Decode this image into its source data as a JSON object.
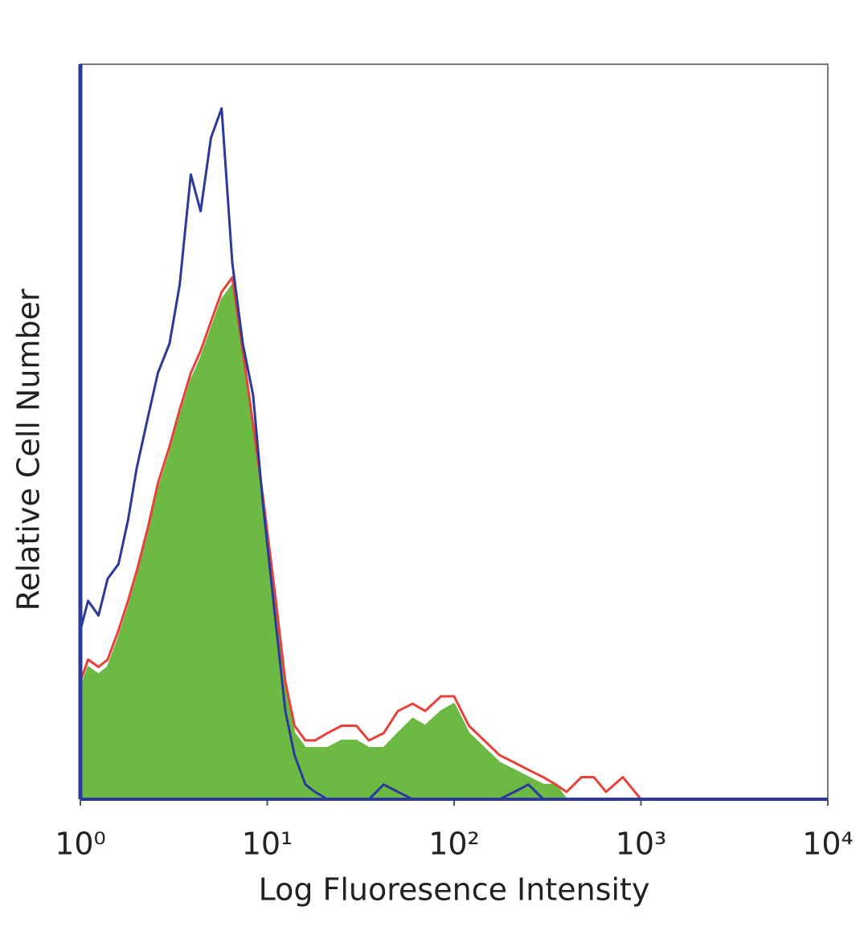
{
  "chart_data": {
    "type": "histogram-overlay",
    "x_label": "Log Fluoresence Intensity",
    "y_label": "Relative Cell Number",
    "xscale": "log",
    "xlim": [
      1,
      10000
    ],
    "ylim": [
      0,
      100
    ],
    "xticks": [
      {
        "value": 1,
        "label": "10⁰"
      },
      {
        "value": 10,
        "label": "10¹"
      },
      {
        "value": 100,
        "label": "10²"
      },
      {
        "value": 1000,
        "label": "10³"
      },
      {
        "value": 10000,
        "label": "10⁴"
      }
    ],
    "x": [
      1,
      1.1,
      1.25,
      1.4,
      1.6,
      1.8,
      2,
      2.3,
      2.6,
      3,
      3.4,
      3.9,
      4.4,
      5,
      5.7,
      6.5,
      7.4,
      8.4,
      9.5,
      11,
      12.5,
      14,
      16,
      18,
      21,
      25,
      30,
      35,
      42,
      50,
      60,
      70,
      85,
      100,
      120,
      145,
      175,
      210,
      250,
      300,
      350,
      400,
      480,
      560,
      650,
      800,
      1000,
      10000
    ],
    "series": [
      {
        "color": "#6cb943",
        "filled": true,
        "values": [
          15,
          18,
          17,
          18,
          22,
          26,
          30,
          36,
          42,
          47,
          52,
          57,
          60,
          64,
          68,
          70,
          60,
          50,
          40,
          27,
          15,
          9,
          7,
          7,
          7,
          8,
          8,
          7,
          7,
          9,
          11,
          10,
          12,
          13,
          9,
          7,
          5,
          4,
          3,
          2,
          2,
          0,
          0,
          0,
          0,
          0,
          0,
          0
        ]
      },
      {
        "color": "#e8413a",
        "filled": false,
        "values": [
          16,
          19,
          18,
          19,
          23,
          27,
          31,
          37,
          43,
          48,
          53,
          58,
          61,
          65,
          69,
          71,
          61,
          51,
          41,
          28,
          16,
          10,
          8,
          8,
          9,
          10,
          10,
          8,
          9,
          12,
          13,
          12,
          14,
          14,
          10,
          8,
          6,
          5,
          4,
          3,
          2,
          1,
          3,
          3,
          1,
          3,
          0,
          0
        ]
      },
      {
        "color": "#2b3a9a",
        "filled": false,
        "values": [
          23,
          27,
          25,
          30,
          32,
          38,
          45,
          52,
          58,
          62,
          70,
          85,
          80,
          90,
          94,
          73,
          62,
          55,
          40,
          25,
          12,
          6,
          2,
          1,
          0,
          0,
          0,
          0,
          2,
          1,
          0,
          0,
          0,
          0,
          0,
          0,
          0,
          1,
          2,
          0,
          0,
          0,
          0,
          0,
          0,
          0,
          0,
          0
        ]
      }
    ]
  }
}
